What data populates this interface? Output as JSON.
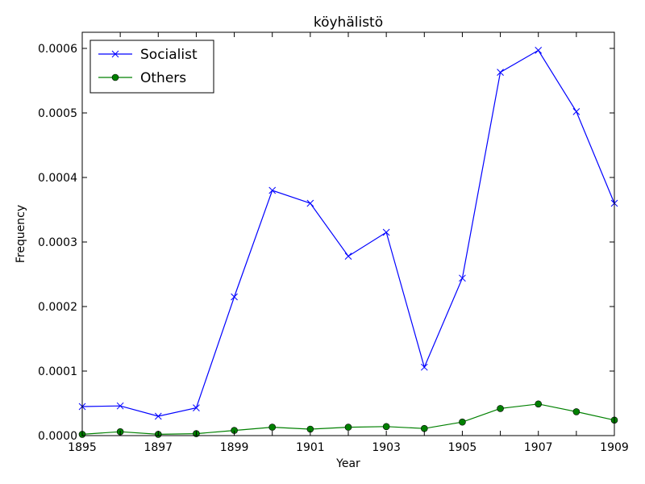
{
  "chart_data": {
    "type": "line",
    "title": "köyhälistö",
    "xlabel": "Year",
    "ylabel": "Frequency",
    "x": [
      1895,
      1896,
      1897,
      1898,
      1899,
      1900,
      1901,
      1902,
      1903,
      1904,
      1905,
      1906,
      1907,
      1908,
      1909
    ],
    "xlim": [
      1895,
      1909
    ],
    "ylim": [
      0,
      0.000625
    ],
    "xticks": [
      "1895",
      "1897",
      "1899",
      "1901",
      "1903",
      "1905",
      "1907",
      "1909"
    ],
    "yticks": [
      "0.0000",
      "0.0001",
      "0.0002",
      "0.0003",
      "0.0004",
      "0.0005",
      "0.0006"
    ],
    "grid": false,
    "legend": "top-left",
    "series": [
      {
        "name": "Socialist",
        "color": "#0000ff",
        "marker": "x",
        "values": [
          4.5e-05,
          4.6e-05,
          3e-05,
          4.3e-05,
          0.000215,
          0.00038,
          0.00036,
          0.000278,
          0.000315,
          0.000106,
          0.000244,
          0.000563,
          0.000597,
          0.000502,
          0.00036
        ]
      },
      {
        "name": "Others",
        "color": "#008000",
        "marker": "o",
        "values": [
          2e-06,
          6e-06,
          2e-06,
          3e-06,
          8e-06,
          1.3e-05,
          1e-05,
          1.3e-05,
          1.4e-05,
          1.1e-05,
          2.1e-05,
          4.2e-05,
          4.9e-05,
          3.7e-05,
          2.4e-05
        ]
      }
    ]
  }
}
